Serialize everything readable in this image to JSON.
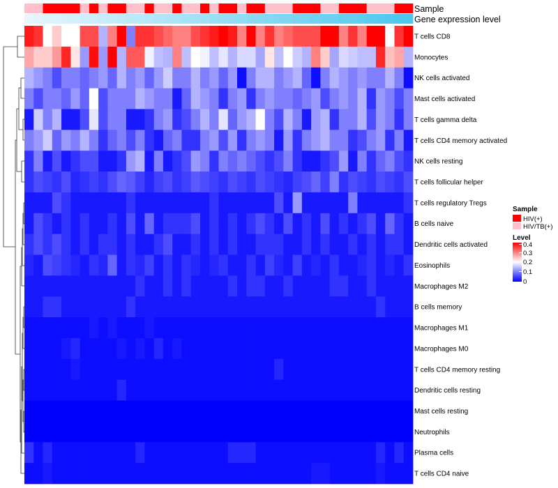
{
  "chart_data": {
    "type": "heatmap",
    "title": "",
    "rows": [
      {
        "label": "T cells CD8",
        "values": [
          0.38,
          0.36,
          0.2,
          0.24,
          0.2,
          0.2,
          0.34,
          0.34,
          0.14,
          0.3,
          0.44,
          0.1,
          0.36,
          0.36,
          0.34,
          0.32,
          0.3,
          0.3,
          0.34,
          0.36,
          0.38,
          0.44,
          0.38,
          0.3,
          0.44,
          0.3,
          0.36,
          0.3,
          0.32,
          0.34,
          0.34,
          0.34,
          0.44,
          0.42,
          0.3,
          0.36,
          0.3,
          0.44,
          0.44,
          0.2,
          0.36,
          0.44
        ]
      },
      {
        "label": "Monocytes",
        "values": [
          0.27,
          0.24,
          0.24,
          0.28,
          0.37,
          0.22,
          0.12,
          0.39,
          0.12,
          0.4,
          0.14,
          0.33,
          0.33,
          0.19,
          0.15,
          0.14,
          0.3,
          0.15,
          0.2,
          0.19,
          0.15,
          0.18,
          0.14,
          0.17,
          0.17,
          0.13,
          0.22,
          0.15,
          0.2,
          0.16,
          0.14,
          0.3,
          0.24,
          0.13,
          0.17,
          0.16,
          0.15,
          0.15,
          0.37,
          0.25,
          0.27,
          0.14
        ]
      },
      {
        "label": "NK cells activated",
        "values": [
          0.14,
          0.12,
          0.1,
          0.06,
          0.1,
          0.1,
          0.08,
          0.1,
          0.12,
          0.08,
          0.14,
          0.1,
          0.12,
          0.08,
          0.12,
          0.16,
          0.1,
          0.1,
          0.14,
          0.1,
          0.12,
          0.08,
          0.12,
          0.01,
          0.1,
          0.14,
          0.14,
          0.1,
          0.12,
          0.14,
          0.08,
          0.01,
          0.1,
          0.14,
          0.12,
          0.1,
          0.12,
          0.1,
          0.1,
          0.14,
          0.1,
          0.01
        ]
      },
      {
        "label": "Mast cells activated",
        "values": [
          0.1,
          0.06,
          0.1,
          0.1,
          0.08,
          0.12,
          0.08,
          0.2,
          0.06,
          0.1,
          0.1,
          0.1,
          0.14,
          0.12,
          0.1,
          0.1,
          0.02,
          0.08,
          0.14,
          0.12,
          0.1,
          0.04,
          0.1,
          0.12,
          0.04,
          0.1,
          0.12,
          0.1,
          0.1,
          0.08,
          0.1,
          0.12,
          0.06,
          0.1,
          0.12,
          0.1,
          0.14,
          0.04,
          0.12,
          0.1,
          0.06,
          0.1
        ]
      },
      {
        "label": "T cells gamma delta",
        "values": [
          0.02,
          0.16,
          0.1,
          0.14,
          0.02,
          0.02,
          0.06,
          0.18,
          0.06,
          0.1,
          0.1,
          0.02,
          0.02,
          0.04,
          0.1,
          0.12,
          0.04,
          0.06,
          0.1,
          0.14,
          0.1,
          0.18,
          0.08,
          0.12,
          0.14,
          0.2,
          0.1,
          0.06,
          0.14,
          0.1,
          0.02,
          0.12,
          0.14,
          0.04,
          0.1,
          0.1,
          0.14,
          0.06,
          0.12,
          0.1,
          0.04,
          0.1
        ]
      },
      {
        "label": "T cells CD4 memory activated",
        "values": [
          0.1,
          0.12,
          0.16,
          0.08,
          0.12,
          0.1,
          0.14,
          0.1,
          0.04,
          0.08,
          0.1,
          0.06,
          0.1,
          0.04,
          0.02,
          0.08,
          0.1,
          0.04,
          0.04,
          0.1,
          0.12,
          0.06,
          0.12,
          0.04,
          0.1,
          0.12,
          0.1,
          0.02,
          0.12,
          0.04,
          0.1,
          0.12,
          0.14,
          0.1,
          0.1,
          0.04,
          0.06,
          0.1,
          0.12,
          0.04,
          0.1,
          0.02
        ]
      },
      {
        "label": "NK cells resting",
        "values": [
          0.04,
          0.1,
          0.02,
          0.06,
          0.02,
          0.04,
          0.06,
          0.06,
          0.02,
          0.02,
          0.04,
          0.12,
          0.14,
          0.02,
          0.1,
          0.02,
          0.04,
          0.06,
          0.12,
          0.1,
          0.04,
          0.1,
          0.08,
          0.1,
          0.08,
          0.06,
          0.04,
          0.06,
          0.1,
          0.04,
          0.02,
          0.02,
          0.04,
          0.06,
          0.12,
          0.02,
          0.1,
          0.04,
          0.08,
          0.1,
          0.06,
          0.04
        ]
      },
      {
        "label": "T cells follicular helper",
        "values": [
          0.04,
          0.06,
          0.05,
          0.04,
          0.06,
          0.03,
          0.04,
          0.05,
          0.04,
          0.06,
          0.08,
          0.07,
          0.05,
          0.03,
          0.05,
          0.06,
          0.04,
          0.05,
          0.07,
          0.06,
          0.05,
          0.04,
          0.06,
          0.05,
          0.04,
          0.06,
          0.05,
          0.04,
          0.03,
          0.05,
          0.06,
          0.08,
          0.05,
          0.1,
          0.04,
          0.06,
          0.05,
          0.04,
          0.06,
          0.05,
          0.04,
          0.06
        ]
      },
      {
        "label": "T cells regulatory  Tregs",
        "values": [
          0.02,
          0.02,
          0.02,
          0.06,
          0.04,
          0.02,
          0.02,
          0.02,
          0.02,
          0.02,
          0.02,
          0.04,
          0.02,
          0.02,
          0.02,
          0.02,
          0.02,
          0.02,
          0.02,
          0.02,
          0.04,
          0.02,
          0.02,
          0.02,
          0.02,
          0.02,
          0.02,
          0.06,
          0.02,
          0.12,
          0.02,
          0.02,
          0.02,
          0.02,
          0.02,
          0.1,
          0.02,
          0.02,
          0.02,
          0.02,
          0.02,
          0.04
        ]
      },
      {
        "label": "B cells naive",
        "values": [
          0.02,
          0.06,
          0.04,
          0.02,
          0.04,
          0.02,
          0.04,
          0.02,
          0.02,
          0.04,
          0.02,
          0.06,
          0.02,
          0.08,
          0.02,
          0.04,
          0.04,
          0.04,
          0.06,
          0.02,
          0.04,
          0.02,
          0.04,
          0.02,
          0.04,
          0.06,
          0.04,
          0.02,
          0.06,
          0.02,
          0.04,
          0.02,
          0.06,
          0.02,
          0.04,
          0.02,
          0.04,
          0.06,
          0.02,
          0.08,
          0.04,
          0.02
        ]
      },
      {
        "label": "Dendritic cells activated",
        "values": [
          0.04,
          0.06,
          0.04,
          0.06,
          0.04,
          0.02,
          0.04,
          0.02,
          0.04,
          0.04,
          0.02,
          0.04,
          0.02,
          0.02,
          0.04,
          0.06,
          0.02,
          0.02,
          0.04,
          0.02,
          0.04,
          0.02,
          0.04,
          0.02,
          0.02,
          0.04,
          0.04,
          0.04,
          0.02,
          0.02,
          0.04,
          0.02,
          0.04,
          0.02,
          0.02,
          0.04,
          0.02,
          0.04,
          0.02,
          0.04,
          0.04,
          0.02
        ]
      },
      {
        "label": "Eosinophils",
        "values": [
          0.03,
          0.02,
          0.06,
          0.05,
          0.04,
          0.03,
          0.02,
          0.04,
          0.03,
          0.08,
          0.02,
          0.04,
          0.03,
          0.05,
          0.02,
          0.04,
          0.02,
          0.04,
          0.03,
          0.02,
          0.03,
          0.04,
          0.02,
          0.02,
          0.04,
          0.02,
          0.05,
          0.03,
          0.02,
          0.05,
          0.02,
          0.03,
          0.02,
          0.04,
          0.02,
          0.02,
          0.03,
          0.04,
          0.02,
          0.03,
          0.02,
          0.04
        ]
      },
      {
        "label": "Macrophages M2",
        "values": [
          0.02,
          0.02,
          0.02,
          0.02,
          0.02,
          0.02,
          0.02,
          0.02,
          0.02,
          0.02,
          0.02,
          0.02,
          0.04,
          0.02,
          0.02,
          0.04,
          0.02,
          0.04,
          0.02,
          0.02,
          0.02,
          0.02,
          0.04,
          0.02,
          0.04,
          0.04,
          0.02,
          0.02,
          0.04,
          0.02,
          0.02,
          0.02,
          0.02,
          0.04,
          0.04,
          0.02,
          0.02,
          0.04,
          0.02,
          0.02,
          0.02,
          0.02
        ]
      },
      {
        "label": "B cells memory",
        "values": [
          0.02,
          0.02,
          0.04,
          0.04,
          0.02,
          0.02,
          0.02,
          0.02,
          0.02,
          0.02,
          0.02,
          0.04,
          0.02,
          0.02,
          0.02,
          0.02,
          0.02,
          0.02,
          0.02,
          0.02,
          0.02,
          0.02,
          0.02,
          0.02,
          0.02,
          0.02,
          0.02,
          0.02,
          0.02,
          0.02,
          0.02,
          0.02,
          0.02,
          0.02,
          0.02,
          0.02,
          0.02,
          0.02,
          0.04,
          0.02,
          0.02,
          0.02
        ]
      },
      {
        "label": "Macrophages M1",
        "values": [
          0.01,
          0.01,
          0.01,
          0.01,
          0.01,
          0.01,
          0.01,
          0.02,
          0.01,
          0.02,
          0.01,
          0.01,
          0.01,
          0.02,
          0.01,
          0.01,
          0.01,
          0.01,
          0.01,
          0.01,
          0.01,
          0.01,
          0.01,
          0.01,
          0.01,
          0.01,
          0.01,
          0.01,
          0.01,
          0.01,
          0.01,
          0.01,
          0.01,
          0.01,
          0.01,
          0.01,
          0.01,
          0.01,
          0.01,
          0.01,
          0.01,
          0.01
        ]
      },
      {
        "label": "Macrophages M0",
        "values": [
          0.01,
          0.01,
          0.01,
          0.01,
          0.02,
          0.03,
          0.01,
          0.01,
          0.01,
          0.01,
          0.02,
          0.01,
          0.02,
          0.01,
          0.03,
          0.01,
          0.02,
          0.01,
          0.01,
          0.01,
          0.01,
          0.01,
          0.01,
          0.01,
          0.01,
          0.01,
          0.01,
          0.01,
          0.01,
          0.01,
          0.01,
          0.01,
          0.01,
          0.01,
          0.01,
          0.01,
          0.01,
          0.01,
          0.01,
          0.01,
          0.01,
          0.01
        ]
      },
      {
        "label": "T cells CD4 memory resting",
        "values": [
          0.01,
          0.01,
          0.01,
          0.01,
          0.01,
          0.02,
          0.01,
          0.01,
          0.01,
          0.01,
          0.01,
          0.01,
          0.01,
          0.01,
          0.01,
          0.01,
          0.01,
          0.01,
          0.01,
          0.01,
          0.01,
          0.01,
          0.01,
          0.01,
          0.01,
          0.01,
          0.01,
          0.03,
          0.01,
          0.01,
          0.01,
          0.01,
          0.01,
          0.01,
          0.01,
          0.01,
          0.01,
          0.01,
          0.01,
          0.01,
          0.01,
          0.01
        ]
      },
      {
        "label": "Dendritic cells resting",
        "values": [
          0.01,
          0.01,
          0.01,
          0.01,
          0.01,
          0.01,
          0.01,
          0.01,
          0.01,
          0.01,
          0.03,
          0.01,
          0.01,
          0.01,
          0.01,
          0.01,
          0.01,
          0.01,
          0.01,
          0.01,
          0.01,
          0.01,
          0.01,
          0.01,
          0.01,
          0.01,
          0.01,
          0.01,
          0.01,
          0.01,
          0.01,
          0.01,
          0.01,
          0.01,
          0.01,
          0.01,
          0.01,
          0.01,
          0.01,
          0.01,
          0.01,
          0.01
        ]
      },
      {
        "label": "Mast cells resting",
        "values": [
          0,
          0,
          0,
          0,
          0,
          0,
          0,
          0,
          0,
          0,
          0,
          0,
          0,
          0,
          0,
          0,
          0,
          0,
          0,
          0,
          0,
          0,
          0,
          0,
          0,
          0,
          0,
          0,
          0,
          0,
          0,
          0,
          0,
          0,
          0,
          0,
          0,
          0,
          0,
          0,
          0,
          0
        ]
      },
      {
        "label": "Neutrophils",
        "values": [
          0,
          0,
          0,
          0,
          0,
          0,
          0,
          0,
          0,
          0,
          0,
          0,
          0,
          0,
          0,
          0,
          0,
          0,
          0,
          0,
          0,
          0,
          0,
          0,
          0,
          0,
          0,
          0,
          0,
          0,
          0,
          0,
          0,
          0,
          0,
          0,
          0,
          0,
          0,
          0,
          0,
          0
        ]
      },
      {
        "label": "Plasma cells",
        "values": [
          0.04,
          0.01,
          0.03,
          0.01,
          0.01,
          0.01,
          0.01,
          0.01,
          0.01,
          0.01,
          0.01,
          0.01,
          0.03,
          0.01,
          0.01,
          0.01,
          0.01,
          0.01,
          0.01,
          0.01,
          0.01,
          0.01,
          0.03,
          0.03,
          0.03,
          0.01,
          0.01,
          0.01,
          0.01,
          0.01,
          0.01,
          0.01,
          0.01,
          0.01,
          0.01,
          0.01,
          0.01,
          0.01,
          0.03,
          0.01,
          0.03,
          0.01
        ]
      },
      {
        "label": "T cells CD4 naive",
        "values": [
          0.01,
          0.01,
          0.02,
          0.01,
          0.01,
          0.01,
          0.01,
          0.01,
          0.01,
          0.01,
          0.01,
          0.01,
          0.01,
          0.01,
          0.01,
          0.01,
          0.01,
          0.01,
          0.01,
          0.01,
          0.01,
          0.01,
          0.01,
          0.01,
          0.01,
          0.01,
          0.01,
          0.01,
          0.01,
          0.01,
          0.01,
          0.02,
          0.02,
          0.01,
          0.01,
          0.01,
          0.01,
          0.01,
          0.02,
          0.01,
          0.01,
          0.01
        ]
      }
    ],
    "column_annotations": [
      {
        "label": "Sample",
        "values": [
          "HIV/TB(+)",
          "HIV/TB(+)",
          "HIV(+)",
          "HIV(+)",
          "HIV(+)",
          "HIV(+)",
          "HIV/TB(+)",
          "HIV(+)",
          "HIV/TB(+)",
          "HIV(+)",
          "HIV(+)",
          "HIV/TB(+)",
          "HIV/TB(+)",
          "HIV(+)",
          "HIV/TB(+)",
          "HIV/TB(+)",
          "HIV(+)",
          "HIV/TB(+)",
          "HIV/TB(+)",
          "HIV(+)",
          "HIV/TB(+)",
          "HIV(+)",
          "HIV(+)",
          "HIV/TB(+)",
          "HIV(+)",
          "HIV(+)",
          "HIV/TB(+)",
          "HIV/TB(+)",
          "HIV/TB(+)",
          "HIV(+)",
          "HIV(+)",
          "HIV(+)",
          "HIV/TB(+)",
          "HIV/TB(+)",
          "HIV(+)",
          "HIV(+)",
          "HIV(+)",
          "HIV/TB(+)",
          "HIV/TB(+)",
          "HIV/TB(+)",
          "HIV(+)",
          "HIV(+)"
        ]
      },
      {
        "label": "Gene expression level",
        "values": [
          0.0,
          0.02,
          0.05,
          0.07,
          0.1,
          0.12,
          0.15,
          0.17,
          0.2,
          0.22,
          0.24,
          0.27,
          0.29,
          0.32,
          0.34,
          0.37,
          0.39,
          0.41,
          0.44,
          0.46,
          0.49,
          0.51,
          0.54,
          0.56,
          0.59,
          0.61,
          0.63,
          0.66,
          0.68,
          0.71,
          0.73,
          0.76,
          0.78,
          0.8,
          0.83,
          0.85,
          0.88,
          0.9,
          0.93,
          0.95,
          0.98,
          1.0
        ]
      }
    ],
    "legend": {
      "sample_title": "Sample",
      "sample_entries": [
        {
          "label": "HIV(+)",
          "color": "#ff0000"
        },
        {
          "label": "HIV/TB(+)",
          "color": "#ffc0cb"
        }
      ],
      "level_title": "Level",
      "level_ticks": [
        "0.4",
        "0.3",
        "0.2",
        "0.1",
        "0"
      ],
      "level_range": [
        0,
        0.4
      ],
      "placement": "right"
    },
    "colors": {
      "low": "#0000ff",
      "mid": "#ffffff",
      "high": "#ff0000",
      "annotation_low": "#e6f6fc",
      "annotation_high": "#4cc7ee"
    }
  }
}
